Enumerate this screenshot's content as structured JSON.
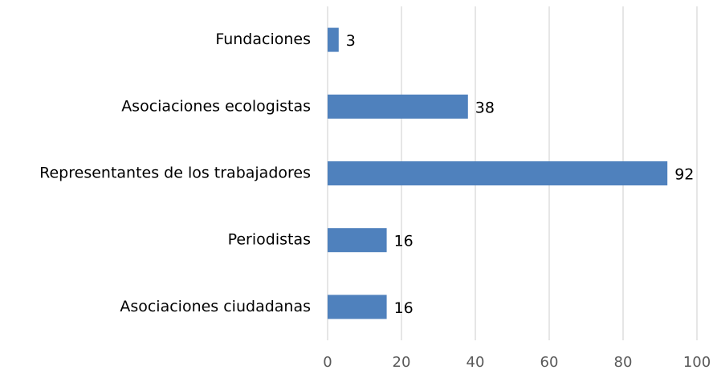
{
  "chart_data": {
    "type": "bar",
    "orientation": "horizontal",
    "categories": [
      "Fundaciones",
      "Asociaciones ecologistas",
      "Representantes de los trabajadores",
      "Periodistas",
      "Asociaciones ciudadanas"
    ],
    "values": [
      3,
      38,
      92,
      16,
      16
    ],
    "color": "#4f81bd",
    "xlim": [
      0,
      100
    ],
    "xticks": [
      0,
      20,
      40,
      60,
      80,
      100
    ],
    "grid": true
  }
}
